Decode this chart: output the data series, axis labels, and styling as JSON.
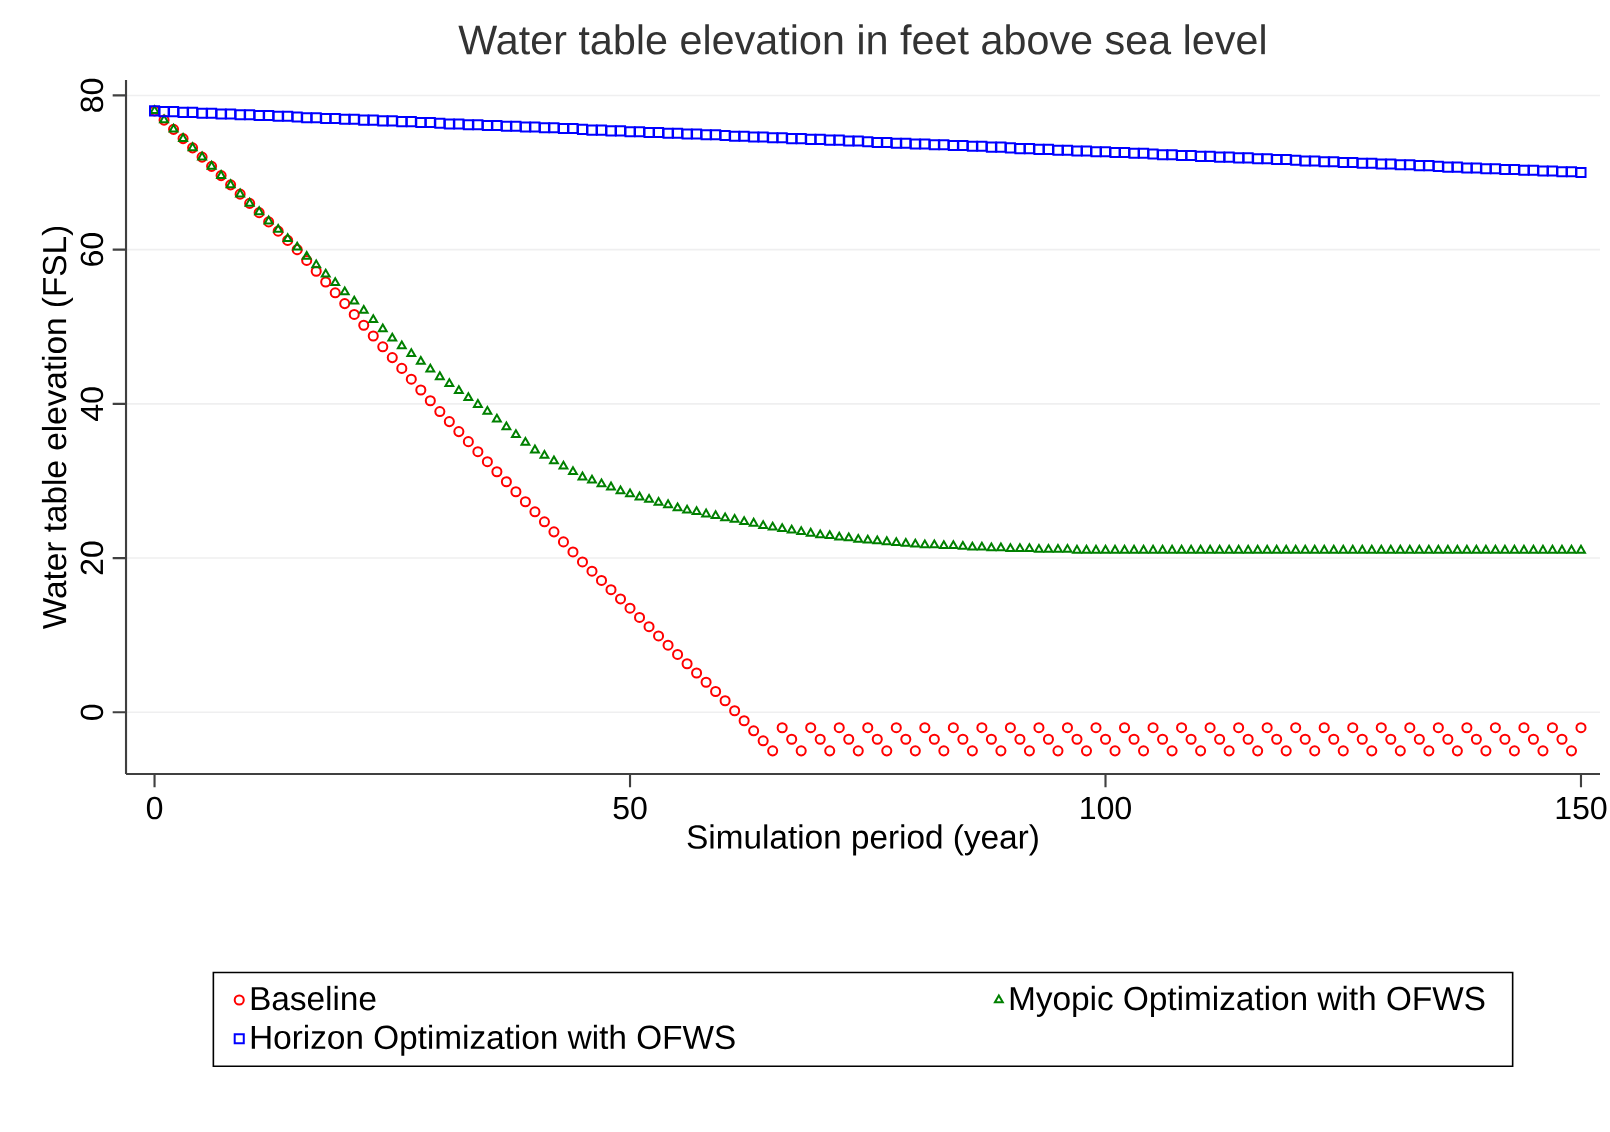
{
  "chart_data": {
    "type": "scatter",
    "title": "Water table elevation in feet above sea level",
    "xlabel": "Simulation period (year)",
    "ylabel": "Water table elevation (FSL)",
    "x": [
      0,
      1,
      2,
      3,
      4,
      5,
      6,
      7,
      8,
      9,
      10,
      11,
      12,
      13,
      14,
      15,
      16,
      17,
      18,
      19,
      20,
      21,
      22,
      23,
      24,
      25,
      26,
      27,
      28,
      29,
      30,
      31,
      32,
      33,
      34,
      35,
      36,
      37,
      38,
      39,
      40,
      41,
      42,
      43,
      44,
      45,
      46,
      47,
      48,
      49,
      50,
      51,
      52,
      53,
      54,
      55,
      56,
      57,
      58,
      59,
      60,
      61,
      62,
      63,
      64,
      65,
      66,
      67,
      68,
      69,
      70,
      71,
      72,
      73,
      74,
      75,
      76,
      77,
      78,
      79,
      80,
      81,
      82,
      83,
      84,
      85,
      86,
      87,
      88,
      89,
      90,
      91,
      92,
      93,
      94,
      95,
      96,
      97,
      98,
      99,
      100,
      101,
      102,
      103,
      104,
      105,
      106,
      107,
      108,
      109,
      110,
      111,
      112,
      113,
      114,
      115,
      116,
      117,
      118,
      119,
      120,
      121,
      122,
      123,
      124,
      125,
      126,
      127,
      128,
      129,
      130,
      131,
      132,
      133,
      134,
      135,
      136,
      137,
      138,
      139,
      140,
      141,
      142,
      143,
      144,
      145,
      146,
      147,
      148,
      149,
      150
    ],
    "series": [
      {
        "name": "Baseline",
        "color": "#ff0000",
        "marker": "circle",
        "values": [
          78,
          76.8,
          75.6,
          74.4,
          73.2,
          72,
          70.8,
          69.6,
          68.4,
          67.2,
          66,
          64.8,
          63.6,
          62.4,
          61.2,
          60,
          58.6,
          57.2,
          55.8,
          54.4,
          53,
          51.6,
          50.2,
          48.8,
          47.4,
          46,
          44.6,
          43.2,
          41.8,
          40.4,
          39,
          37.7,
          36.4,
          35.1,
          33.8,
          32.5,
          31.2,
          29.9,
          28.6,
          27.3,
          26,
          24.7,
          23.4,
          22.1,
          20.8,
          19.5,
          18.3,
          17.1,
          15.9,
          14.7,
          13.5,
          12.3,
          11.1,
          9.9,
          8.7,
          7.5,
          6.3,
          5.1,
          3.9,
          2.7,
          1.5,
          0.2,
          -1.1,
          -2.4,
          -3.7,
          -5,
          -2,
          -3.5,
          -5,
          -2,
          -3.5,
          -5,
          -2,
          -3.5,
          -5,
          -2,
          -3.5,
          -5,
          -2,
          -3.5,
          -5,
          -2,
          -3.5,
          -5,
          -2,
          -3.5,
          -5,
          -2,
          -3.5,
          -5,
          -2,
          -3.5,
          -5,
          -2,
          -3.5,
          -5,
          -2,
          -3.5,
          -5,
          -2,
          -3.5,
          -5,
          -2,
          -3.5,
          -5,
          -2,
          -3.5,
          -5,
          -2,
          -3.5,
          -5,
          -2,
          -3.5,
          -5,
          -2,
          -3.5,
          -5,
          -2,
          -3.5,
          -5,
          -2,
          -3.5,
          -5,
          -2,
          -3.5,
          -5,
          -2,
          -3.5,
          -5,
          -2,
          -3.5,
          -5,
          -2,
          -3.5,
          -5,
          -2,
          -3.5,
          -5,
          -2,
          -3.5,
          -5,
          -2,
          -3.5,
          -5,
          -2,
          -3.5,
          -5,
          -2,
          -3.5,
          -5,
          -2
        ]
      },
      {
        "name": "Myopic Optimization with OFWS",
        "color": "#008000",
        "marker": "triangle",
        "values": [
          78,
          76.8,
          75.6,
          74.4,
          73.2,
          72,
          70.8,
          69.6,
          68.4,
          67.2,
          66,
          64.9,
          63.7,
          62.6,
          61.4,
          60.3,
          59.1,
          58,
          56.8,
          55.7,
          54.5,
          53.3,
          52.1,
          50.9,
          49.7,
          48.5,
          47.5,
          46.5,
          45.5,
          44.5,
          43.5,
          42.6,
          41.7,
          40.8,
          39.9,
          39,
          38,
          37,
          36,
          35,
          34,
          33.3,
          32.6,
          31.9,
          31.2,
          30.5,
          30.1,
          29.6,
          29.2,
          28.7,
          28.3,
          27.9,
          27.6,
          27.2,
          26.9,
          26.5,
          26.2,
          26,
          25.7,
          25.5,
          25.2,
          25,
          24.7,
          24.5,
          24.2,
          24,
          23.8,
          23.6,
          23.4,
          23.2,
          23,
          22.9,
          22.7,
          22.6,
          22.4,
          22.3,
          22.2,
          22.1,
          22,
          21.9,
          21.8,
          21.7,
          21.7,
          21.6,
          21.6,
          21.5,
          21.4,
          21.4,
          21.3,
          21.3,
          21.2,
          21.2,
          21.2,
          21.1,
          21.1,
          21.1,
          21.1,
          21,
          21,
          21,
          21,
          21,
          21,
          21,
          21,
          21,
          21,
          21,
          21,
          21,
          21,
          21,
          21,
          21,
          21,
          21,
          21,
          21,
          21,
          21,
          21,
          21,
          21,
          21,
          21,
          21,
          21,
          21,
          21,
          21,
          21,
          21,
          21,
          21,
          21,
          21,
          21,
          21,
          21,
          21,
          21,
          21,
          21,
          21,
          21,
          21,
          21,
          21,
          21,
          21,
          21
        ]
      },
      {
        "name": "Horizon Optimization with OFWS",
        "color": "#0000ff",
        "marker": "square",
        "values": [
          78,
          77.9,
          77.9,
          77.8,
          77.8,
          77.7,
          77.7,
          77.6,
          77.6,
          77.5,
          77.5,
          77.4,
          77.4,
          77.3,
          77.3,
          77.2,
          77.1,
          77.1,
          77,
          77,
          76.9,
          76.9,
          76.8,
          76.8,
          76.7,
          76.7,
          76.6,
          76.6,
          76.5,
          76.5,
          76.4,
          76.3,
          76.3,
          76.2,
          76.2,
          76.1,
          76.1,
          76,
          76,
          75.9,
          75.9,
          75.8,
          75.8,
          75.7,
          75.7,
          75.6,
          75.5,
          75.5,
          75.4,
          75.4,
          75.3,
          75.3,
          75.2,
          75.2,
          75.1,
          75.1,
          75,
          75,
          74.9,
          74.9,
          74.8,
          74.7,
          74.7,
          74.6,
          74.6,
          74.5,
          74.5,
          74.4,
          74.4,
          74.3,
          74.3,
          74.2,
          74.2,
          74.1,
          74.1,
          74,
          73.9,
          73.9,
          73.8,
          73.8,
          73.7,
          73.7,
          73.6,
          73.6,
          73.5,
          73.5,
          73.4,
          73.4,
          73.3,
          73.3,
          73.2,
          73.1,
          73.1,
          73,
          73,
          72.9,
          72.9,
          72.8,
          72.8,
          72.7,
          72.7,
          72.6,
          72.6,
          72.5,
          72.5,
          72.4,
          72.3,
          72.3,
          72.2,
          72.2,
          72.1,
          72.1,
          72,
          72,
          71.9,
          71.9,
          71.8,
          71.8,
          71.7,
          71.7,
          71.6,
          71.5,
          71.5,
          71.4,
          71.4,
          71.3,
          71.3,
          71.2,
          71.2,
          71.1,
          71.1,
          71,
          71,
          70.9,
          70.9,
          70.8,
          70.7,
          70.7,
          70.6,
          70.6,
          70.5,
          70.5,
          70.4,
          70.4,
          70.3,
          70.3,
          70.2,
          70.2,
          70.1,
          70.1,
          70
        ]
      }
    ],
    "xlim": [
      -3,
      152
    ],
    "ylim": [
      -8,
      82
    ],
    "xticks": [
      0,
      50,
      100,
      150
    ],
    "yticks": [
      0,
      20,
      40,
      60,
      80
    ],
    "grid": "y",
    "legend": "bottom"
  }
}
